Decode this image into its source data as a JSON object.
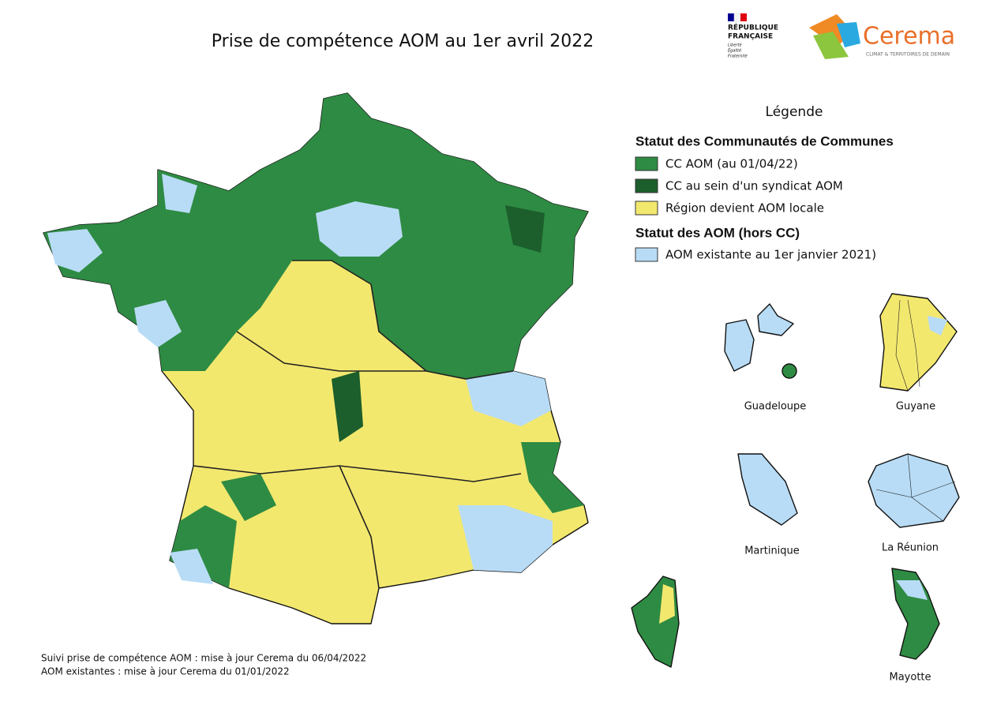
{
  "header": {
    "title": "Prise de compétence AOM au 1er avril 2022",
    "republique": [
      "RÉPUBLIQUE",
      "FRANÇAISE"
    ],
    "devise": [
      "Liberté",
      "Égalité",
      "Fraternité"
    ],
    "cerema": "Cerema",
    "cerema_tagline": "CLIMAT & TERRITOIRES DE DEMAIN"
  },
  "legend": {
    "title": "Légende",
    "sections": [
      {
        "heading": "Statut des Communautés de Communes",
        "items": [
          {
            "label": "CC AOM (au 01/04/22)",
            "color": "#2e8b43"
          },
          {
            "label": "CC au sein d'un syndicat AOM",
            "color": "#1c5e2c"
          },
          {
            "label": "Région devient AOM locale",
            "color": "#f3e86e"
          }
        ]
      },
      {
        "heading": "Statut des AOM (hors CC)",
        "items": [
          {
            "label": "AOM existante au 1er janvier 2021)",
            "color": "#b8dcf6"
          }
        ]
      }
    ]
  },
  "territories": [
    "Guadeloupe",
    "Guyane",
    "Martinique",
    "La Réunion",
    "Mayotte"
  ],
  "footnotes": [
    "Suivi prise de compétence AOM : mise à jour Cerema du 06/04/2022",
    "AOM existantes : mise à jour Cerema du 01/01/2022"
  ]
}
